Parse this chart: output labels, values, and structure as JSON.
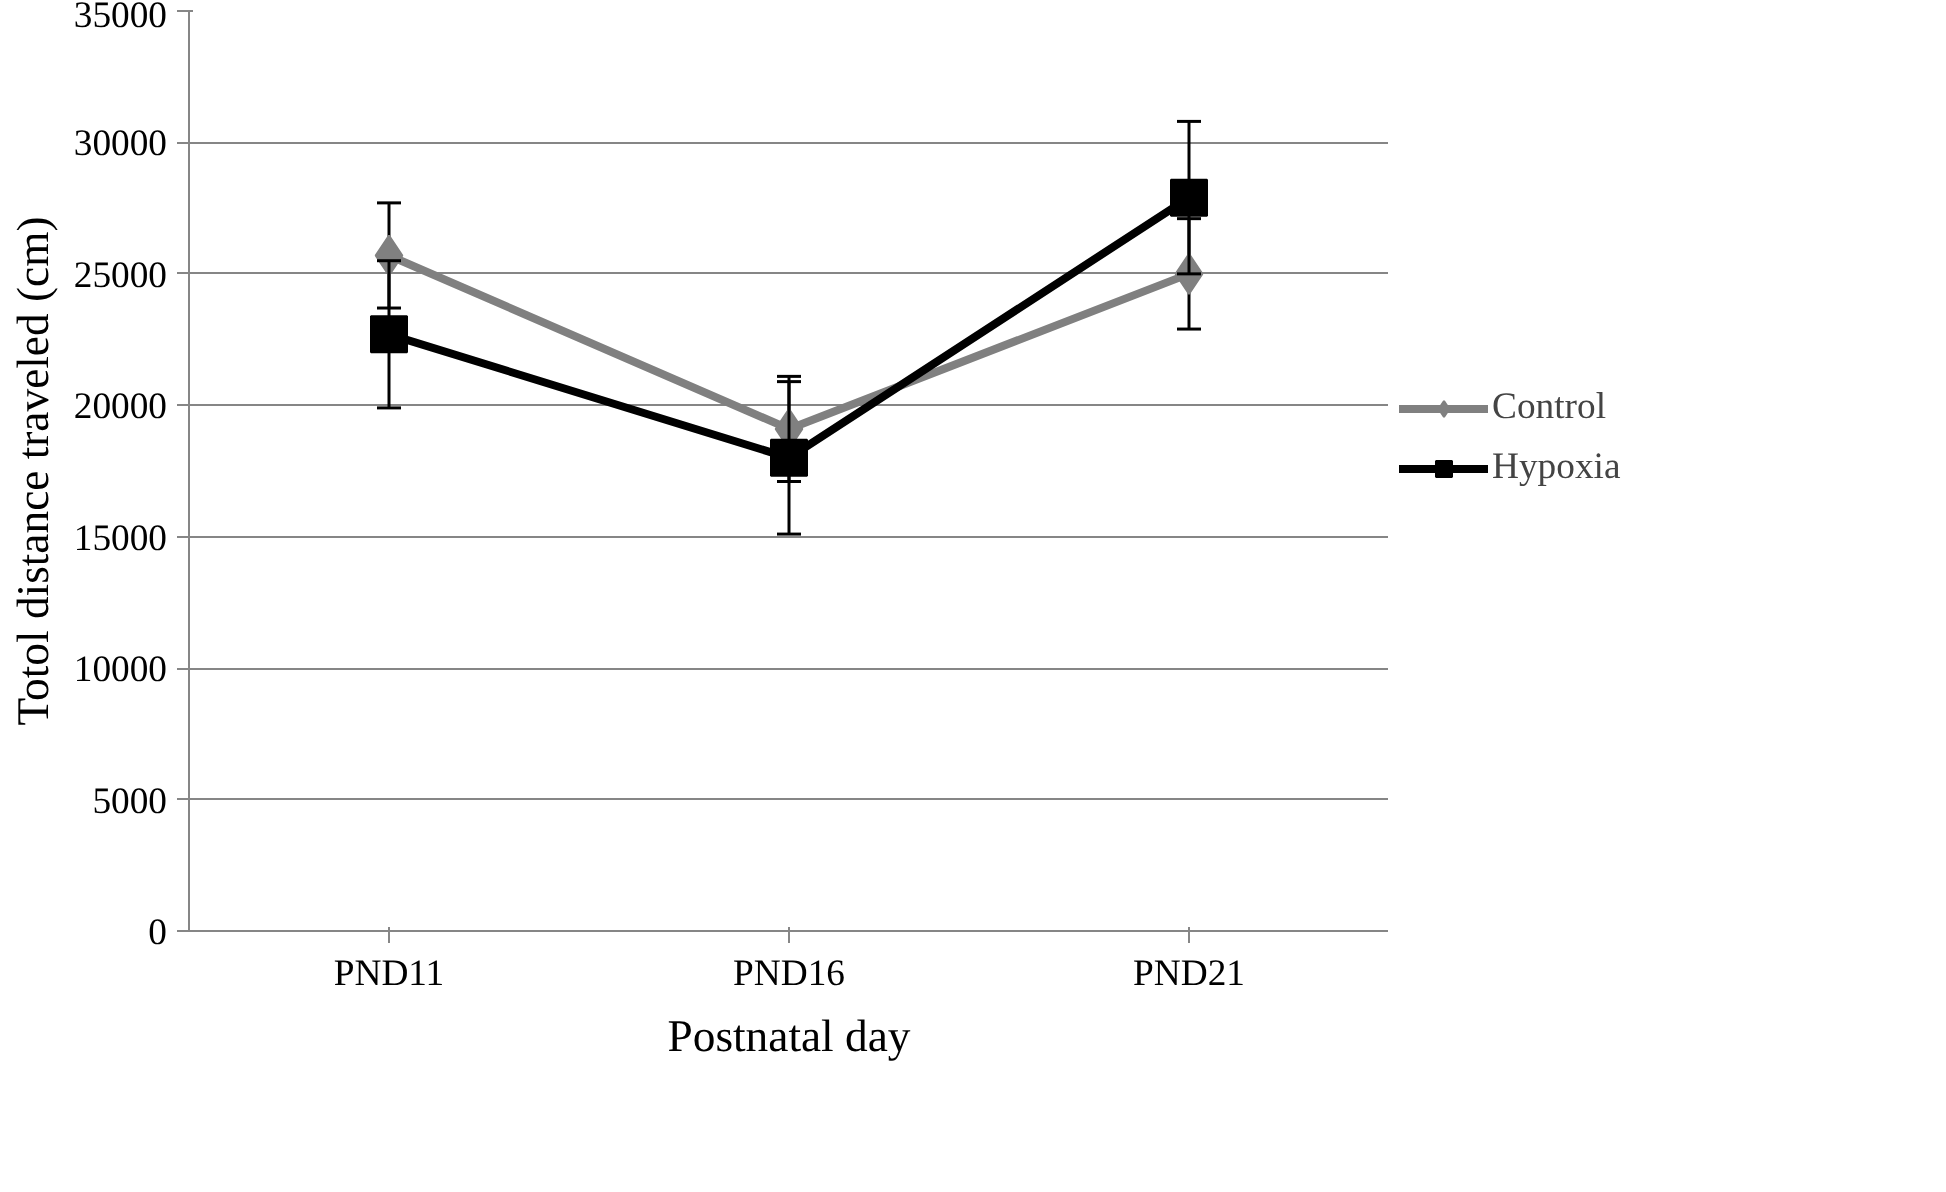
{
  "chart_data": {
    "type": "line",
    "xlabel": "Postnatal day",
    "ylabel": "Totol distance traveled (cm)",
    "categories": [
      "PND11",
      "PND16",
      "PND21"
    ],
    "series": [
      {
        "name": "Control",
        "color": "#808080",
        "values": [
          25700,
          19100,
          25000
        ],
        "errors": [
          2000,
          2000,
          2100
        ],
        "marker": "diamond"
      },
      {
        "name": "Hypoxia",
        "color": "#000000",
        "values": [
          22700,
          18000,
          27900
        ],
        "errors": [
          2800,
          2900,
          2900
        ],
        "marker": "square"
      }
    ],
    "ylim": [
      0,
      35000
    ],
    "yticks": [
      0,
      5000,
      10000,
      15000,
      20000,
      25000,
      30000,
      35000
    ],
    "grid": "y",
    "legend": "right",
    "line_style": "solid"
  }
}
